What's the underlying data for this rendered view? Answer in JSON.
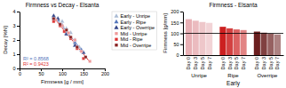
{
  "chart_data": [
    {
      "type": "scatter",
      "title": "Firmness vs Decay - Elsanta",
      "x_label": "Firmness [g / mm]",
      "y_label": "Decay [%N]",
      "xlim": [
        0,
        200
      ],
      "ylim": [
        0,
        4
      ],
      "xticks": [
        0,
        50,
        100,
        150,
        200
      ],
      "yticks": [
        0,
        1,
        2,
        3,
        4
      ],
      "legend": "upper right",
      "annotations": [
        {
          "text": "R² = 0.8568",
          "color": "#5577bb"
        },
        {
          "text": "R² = 0.9423",
          "color": "#dd3333"
        }
      ],
      "series": [
        {
          "type": "line",
          "color": "#5577bb",
          "x": [
            80,
            150
          ],
          "values": [
            3.7248,
            1.1333
          ]
        },
        {
          "type": "line",
          "color": "#dd3333",
          "x": [
            80,
            165
          ],
          "values": [
            3.585,
            0.4563
          ]
        },
        {
          "name": "Early - Unripe",
          "color": "#aabbd4",
          "marker": "triangle",
          "x": [
            80,
            100,
            110,
            120,
            130,
            140
          ],
          "values": [
            3.5,
            3.3,
            2.8,
            2.5,
            2.0,
            1.5
          ]
        },
        {
          "name": "Early - Ripe",
          "color": "#5577bb",
          "marker": "triangle",
          "x": [
            80,
            90,
            100,
            110,
            130,
            145
          ],
          "values": [
            3.6,
            3.4,
            3.0,
            2.5,
            1.8,
            1.3
          ]
        },
        {
          "name": "Early - Overripe",
          "color": "#334488",
          "marker": "triangle",
          "x": [
            80,
            90,
            100,
            110,
            130,
            150
          ],
          "values": [
            3.7,
            3.5,
            3.0,
            2.4,
            1.6,
            1.1
          ]
        },
        {
          "name": "Mid - Unripe",
          "color": "#ee9999",
          "marker": "square",
          "x": [
            85,
            100,
            115,
            130,
            145,
            165
          ],
          "values": [
            3.4,
            3.0,
            2.5,
            2.0,
            1.2,
            0.5
          ]
        },
        {
          "name": "Mid - Ripe",
          "color": "#dd3333",
          "marker": "square",
          "x": [
            80,
            95,
            105,
            120,
            135,
            150
          ],
          "values": [
            3.3,
            3.0,
            2.6,
            2.1,
            1.4,
            0.7
          ]
        },
        {
          "name": "Mid - Overripe",
          "color": "#882222",
          "marker": "square",
          "x": [
            80,
            95,
            110,
            120,
            135,
            155
          ],
          "values": [
            3.5,
            3.1,
            2.7,
            2.2,
            1.5,
            0.8
          ]
        }
      ]
    },
    {
      "type": "bar",
      "title": "Firmness - Elsanta",
      "x_label": "Early",
      "y_label": "Firmness [g/mm]",
      "categories": [
        "Unripe",
        "Ripe",
        "Overripe"
      ],
      "ylim": [
        0,
        200
      ],
      "yticks": [
        0,
        50,
        100,
        150,
        200
      ],
      "hline": 100,
      "series": [
        {
          "name": "Day 0",
          "colors": [
            "#e8b0b5",
            "#cc2020",
            "#6b1f1f"
          ],
          "values": [
            165,
            130,
            108
          ]
        },
        {
          "name": "Day 3",
          "colors": [
            "#e8b0b5",
            "#cc2020",
            "#6b1f1f"
          ],
          "values": [
            158,
            123,
            103
          ]
        },
        {
          "name": "Day 5",
          "colors": [
            "#e8b0b5",
            "#cc2020",
            "#6b1f1f"
          ],
          "values": [
            152,
            118,
            98
          ]
        },
        {
          "name": "Day 7",
          "colors": [
            "#e8b0b5",
            "#cc2020",
            "#6b1f1f"
          ],
          "values": [
            148,
            115,
            95
          ]
        }
      ]
    }
  ]
}
